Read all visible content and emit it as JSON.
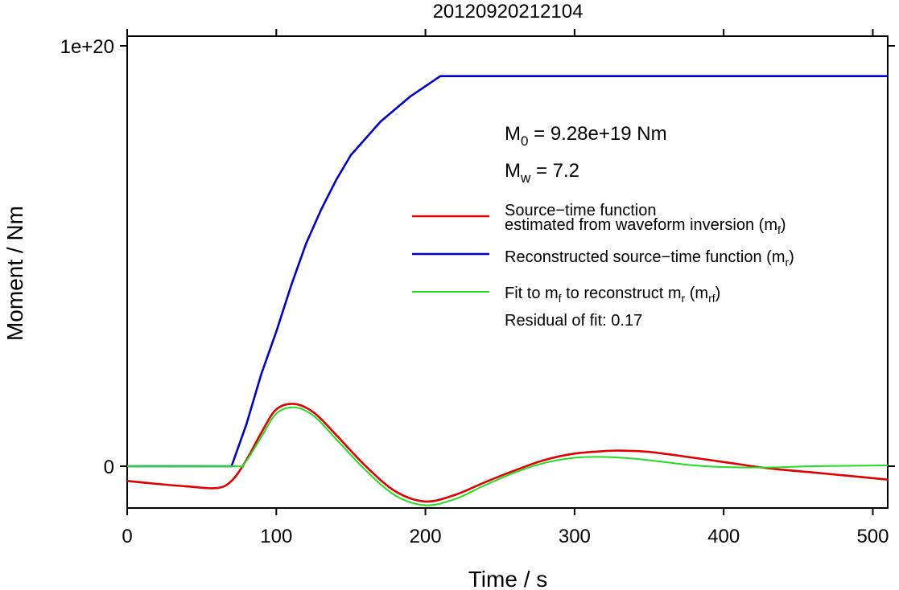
{
  "chart_data": {
    "type": "line",
    "title": "20120920212104",
    "xlabel": "Time / s",
    "ylabel": "Moment / Nm",
    "xlim": [
      0,
      510
    ],
    "ylim": [
      -1e+19,
      1e+20
    ],
    "x_ticks": [
      0,
      100,
      200,
      300,
      400,
      500
    ],
    "x_tick_labels": [
      "0",
      "100",
      "200",
      "300",
      "400",
      "500"
    ],
    "y_ticks": [
      0,
      1e+20
    ],
    "y_tick_labels": [
      "0",
      "1e+20"
    ],
    "grid": false,
    "legend_position": "right",
    "annotations": {
      "m0_sym": "M",
      "m0_sub": "0",
      "m0_text": " = 9.28e+19 Nm",
      "mw_sym": "M",
      "mw_sub": "w",
      "mw_text": " = 7.2",
      "residual": "Residual of fit: 0.17"
    },
    "legend": [
      {
        "line1": "Source−time function",
        "line2_pre": "estimated from waveform inversion (m",
        "line2_sub": "f",
        "line2_post": ")",
        "color": "#e00000"
      },
      {
        "line1_pre": "Reconstructed source−time function (m",
        "line1_sub": "r",
        "line1_post": ")",
        "color": "#0000cc"
      },
      {
        "line1_a": "Fit to m",
        "line1_sub1": "f",
        "line1_b": " to reconstruct m",
        "line1_sub2": "r",
        "line1_c": " (m",
        "line1_sub3": "rf",
        "line1_d": ")",
        "color": "#22dd22"
      }
    ],
    "series": [
      {
        "color": "#e00000",
        "x": [
          0,
          20,
          40,
          60,
          70,
          80,
          90,
          100,
          112,
          125,
          140,
          160,
          180,
          200,
          220,
          240,
          260,
          280,
          300,
          320,
          330,
          350,
          380,
          400,
          430,
          460,
          490,
          510
        ],
        "y": [
          -3.5e+18,
          -4.2e+18,
          -4.8e+18,
          -5.2e+18,
          -3.5e+18,
          1.5e+18,
          8e+18,
          1.35e+19,
          1.48e+19,
          1.28e+19,
          7.5e+18,
          0.0,
          -6e+18,
          -8.4e+18,
          -6.8e+18,
          -3.8e+18,
          -1e+18,
          1.5e+18,
          3e+18,
          3.6e+18,
          3.7e+18,
          3.4e+18,
          2e+18,
          1e+18,
          -5e+17,
          -1.5e+18,
          -2.5e+18,
          -3.2e+18
        ]
      },
      {
        "color": "#0000cc",
        "x": [
          0,
          70,
          80,
          90,
          100,
          110,
          120,
          130,
          140,
          150,
          170,
          190,
          210,
          510
        ],
        "y": [
          0,
          0,
          1e+19,
          2.2e+19,
          3.2e+19,
          4.3e+19,
          5.3e+19,
          6.1e+19,
          6.8e+19,
          7.4e+19,
          8.2e+19,
          8.8e+19,
          9.28e+19,
          9.28e+19
        ]
      },
      {
        "color": "#22dd22",
        "x": [
          0,
          70,
          78,
          90,
          100,
          112,
          125,
          140,
          160,
          180,
          200,
          220,
          240,
          260,
          280,
          300,
          320,
          340,
          360,
          380,
          400,
          430,
          460,
          510
        ],
        "y": [
          0,
          0,
          4e+17,
          7e+18,
          1.25e+19,
          1.4e+19,
          1.2e+19,
          6.5e+18,
          -1e+18,
          -7e+18,
          -9.3e+18,
          -7.8e+18,
          -4.5e+18,
          -1.5e+18,
          8e+17,
          2e+18,
          2.2e+18,
          1.8e+18,
          1e+18,
          2e+17,
          -2e+17,
          -3e+17,
          0,
          2e+17
        ]
      }
    ]
  }
}
